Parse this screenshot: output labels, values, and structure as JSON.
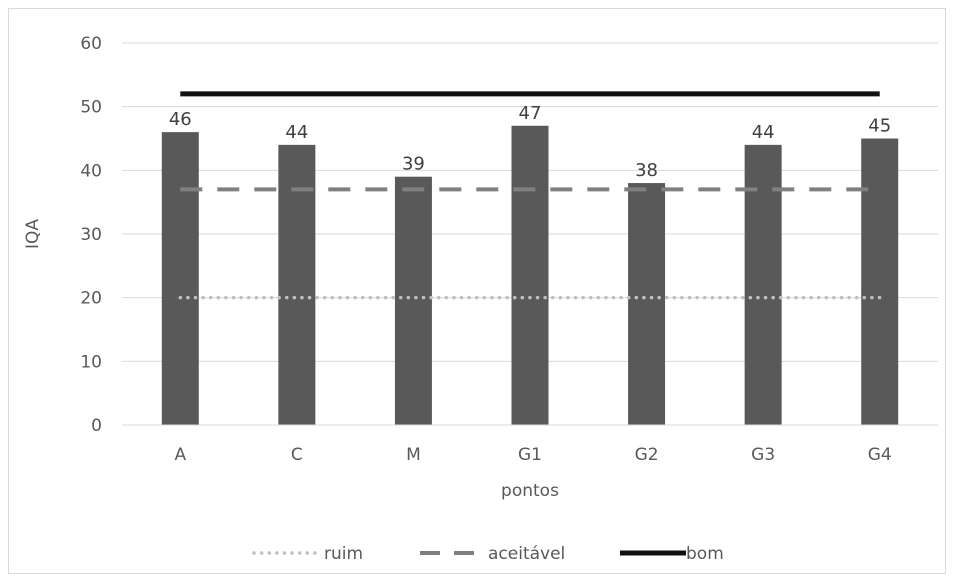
{
  "chart_data": {
    "type": "bar",
    "title": "",
    "xlabel": "pontos",
    "ylabel": "IQA",
    "categories": [
      "A",
      "C",
      "M",
      "G1",
      "G2",
      "G3",
      "G4"
    ],
    "values": [
      46,
      44,
      39,
      47,
      38,
      44,
      45
    ],
    "data_labels": [
      "46",
      "44",
      "39",
      "47",
      "38",
      "44",
      "45"
    ],
    "ylim": [
      0,
      60
    ],
    "y_ticks": [
      "0",
      "10",
      "20",
      "30",
      "40",
      "50",
      "60"
    ],
    "grid": true,
    "bar_color": "#595959",
    "reference_lines": [
      {
        "name": "ruim",
        "value": 20,
        "style": "dotted",
        "color": "#bfbfbf"
      },
      {
        "name": "aceitável",
        "value": 37,
        "style": "dashed",
        "color": "#808080"
      },
      {
        "name": "bom",
        "value": 52,
        "style": "solid",
        "color": "#111111"
      }
    ],
    "legend_position": "bottom"
  }
}
